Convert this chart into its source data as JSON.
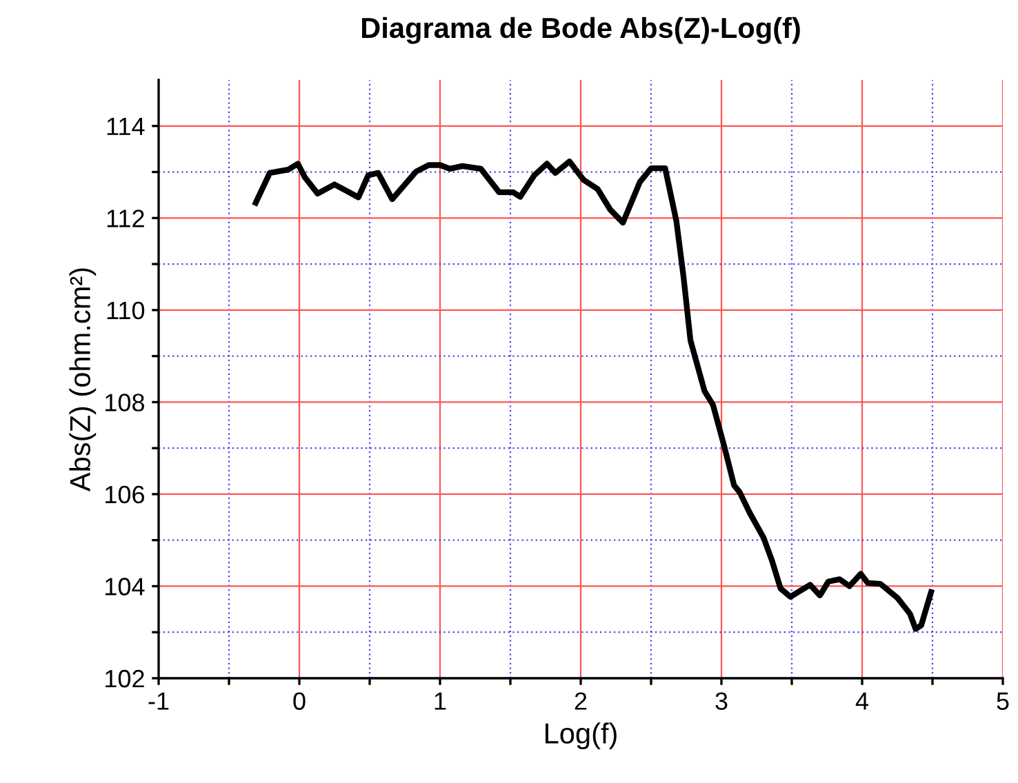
{
  "chart_data": {
    "type": "line",
    "title": "Diagrama de Bode Abs(Z)-Log(f)",
    "xlabel": "Log(f)",
    "ylabel": "Abs(Z) (ohm.cm²)",
    "xlim": [
      -1,
      5
    ],
    "ylim": [
      102,
      115
    ],
    "xticks": [
      -1,
      {
        "value": -0.5,
        "label": null
      },
      0,
      {
        "value": 0.5,
        "label": null
      },
      1,
      {
        "value": 1.5,
        "label": null
      },
      2,
      {
        "value": 2.5,
        "label": null
      },
      3,
      {
        "value": 3.5,
        "label": null
      },
      4,
      {
        "value": 4.5,
        "label": null
      },
      5
    ],
    "yticks": [
      102,
      {
        "value": 103,
        "label": null
      },
      104,
      {
        "value": 105,
        "label": null
      },
      106,
      {
        "value": 107,
        "label": null
      },
      108,
      {
        "value": 109,
        "label": null
      },
      110,
      {
        "value": 111,
        "label": null
      },
      112,
      {
        "value": 113,
        "label": null
      },
      114
    ],
    "grid": true,
    "marker": "none",
    "line_style": "solid",
    "series": [
      {
        "color": "#000000",
        "x": [
          -0.31,
          -0.21,
          -0.08,
          -0.01,
          0.04,
          0.13,
          0.25,
          0.42,
          0.49,
          0.56,
          0.66,
          0.83,
          0.92,
          1.0,
          1.07,
          1.16,
          1.29,
          1.42,
          1.52,
          1.57,
          1.67,
          1.76,
          1.82,
          1.92,
          2.02,
          2.12,
          2.21,
          2.3,
          2.42,
          2.5,
          2.6,
          2.68,
          2.73,
          2.78,
          2.88,
          2.94,
          3.02,
          3.09,
          3.13,
          3.2,
          3.3,
          3.36,
          3.42,
          3.49,
          3.63,
          3.7,
          3.76,
          3.84,
          3.91,
          3.99,
          4.04,
          4.13,
          4.25,
          4.34,
          4.38,
          4.42,
          4.49
        ],
        "values": [
          112.33,
          112.98,
          113.05,
          113.18,
          112.88,
          112.53,
          112.73,
          112.45,
          112.93,
          112.98,
          112.41,
          113.01,
          113.15,
          113.15,
          113.07,
          113.13,
          113.07,
          112.56,
          112.56,
          112.46,
          112.93,
          113.18,
          112.98,
          113.23,
          112.83,
          112.63,
          112.18,
          111.9,
          112.78,
          113.08,
          113.08,
          111.93,
          110.74,
          109.34,
          108.24,
          107.94,
          107.04,
          106.19,
          106.04,
          105.6,
          105.05,
          104.55,
          103.95,
          103.77,
          104.03,
          103.8,
          104.1,
          104.15,
          104.0,
          104.27,
          104.07,
          104.05,
          103.75,
          103.4,
          103.07,
          103.15,
          103.87
        ]
      }
    ]
  }
}
